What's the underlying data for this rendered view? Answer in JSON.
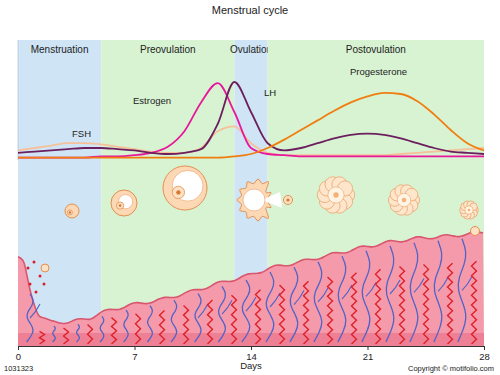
{
  "chart_data": {
    "type": "line",
    "title": "Menstrual cycle",
    "x_label": "Days",
    "x": [
      0,
      1,
      2,
      3,
      4,
      5,
      6,
      7,
      8,
      9,
      10,
      11,
      12,
      13,
      14,
      15,
      16,
      17,
      18,
      19,
      20,
      21,
      22,
      23,
      24,
      25,
      26,
      27,
      28
    ],
    "xlim": [
      0,
      28
    ],
    "xticks": [
      0,
      7,
      14,
      21,
      28
    ],
    "ylim": [
      0,
      100
    ],
    "tick_labels": "x",
    "phases": [
      {
        "label": "Menstruation",
        "start": 0,
        "end": 5
      },
      {
        "label": "Preovulation",
        "start": 5,
        "end": 13
      },
      {
        "label": "Ovulation",
        "start": 13,
        "end": 15
      },
      {
        "label": "Postovulation",
        "start": 15,
        "end": 28
      }
    ],
    "series": [
      {
        "name": "FSH",
        "color": "#f5c09a",
        "values": [
          8,
          10,
          12,
          14,
          14,
          13,
          11,
          9,
          7,
          6,
          6,
          10,
          24,
          28,
          14,
          6,
          4,
          4,
          4,
          4,
          4,
          4,
          4,
          5,
          6,
          7,
          8,
          9,
          10
        ]
      },
      {
        "name": "Estrogen",
        "color": "#e8189c",
        "values": [
          2,
          2,
          2,
          2,
          2,
          3,
          3,
          4,
          6,
          11,
          24,
          48,
          64,
          40,
          10,
          5,
          4,
          3,
          3,
          3,
          3,
          3,
          3,
          3,
          3,
          3,
          3,
          3,
          3
        ]
      },
      {
        "name": "LH",
        "color": "#6b1f5e",
        "values": [
          6,
          7,
          8,
          9,
          10,
          10,
          9,
          8,
          6,
          5,
          6,
          9,
          30,
          65,
          40,
          14,
          8,
          10,
          14,
          18,
          21,
          22,
          21,
          18,
          14,
          10,
          7,
          6,
          5
        ]
      },
      {
        "name": "Progesterone",
        "color": "#f07d0f",
        "values": [
          2,
          2,
          2,
          2,
          2,
          2,
          2,
          2,
          2,
          2,
          2,
          2,
          2,
          3,
          5,
          10,
          17,
          25,
          33,
          41,
          48,
          53,
          56,
          55,
          49,
          38,
          25,
          14,
          8
        ]
      }
    ]
  },
  "figure_id": "1031323",
  "copyright": "Copyright © motifolio.com"
}
